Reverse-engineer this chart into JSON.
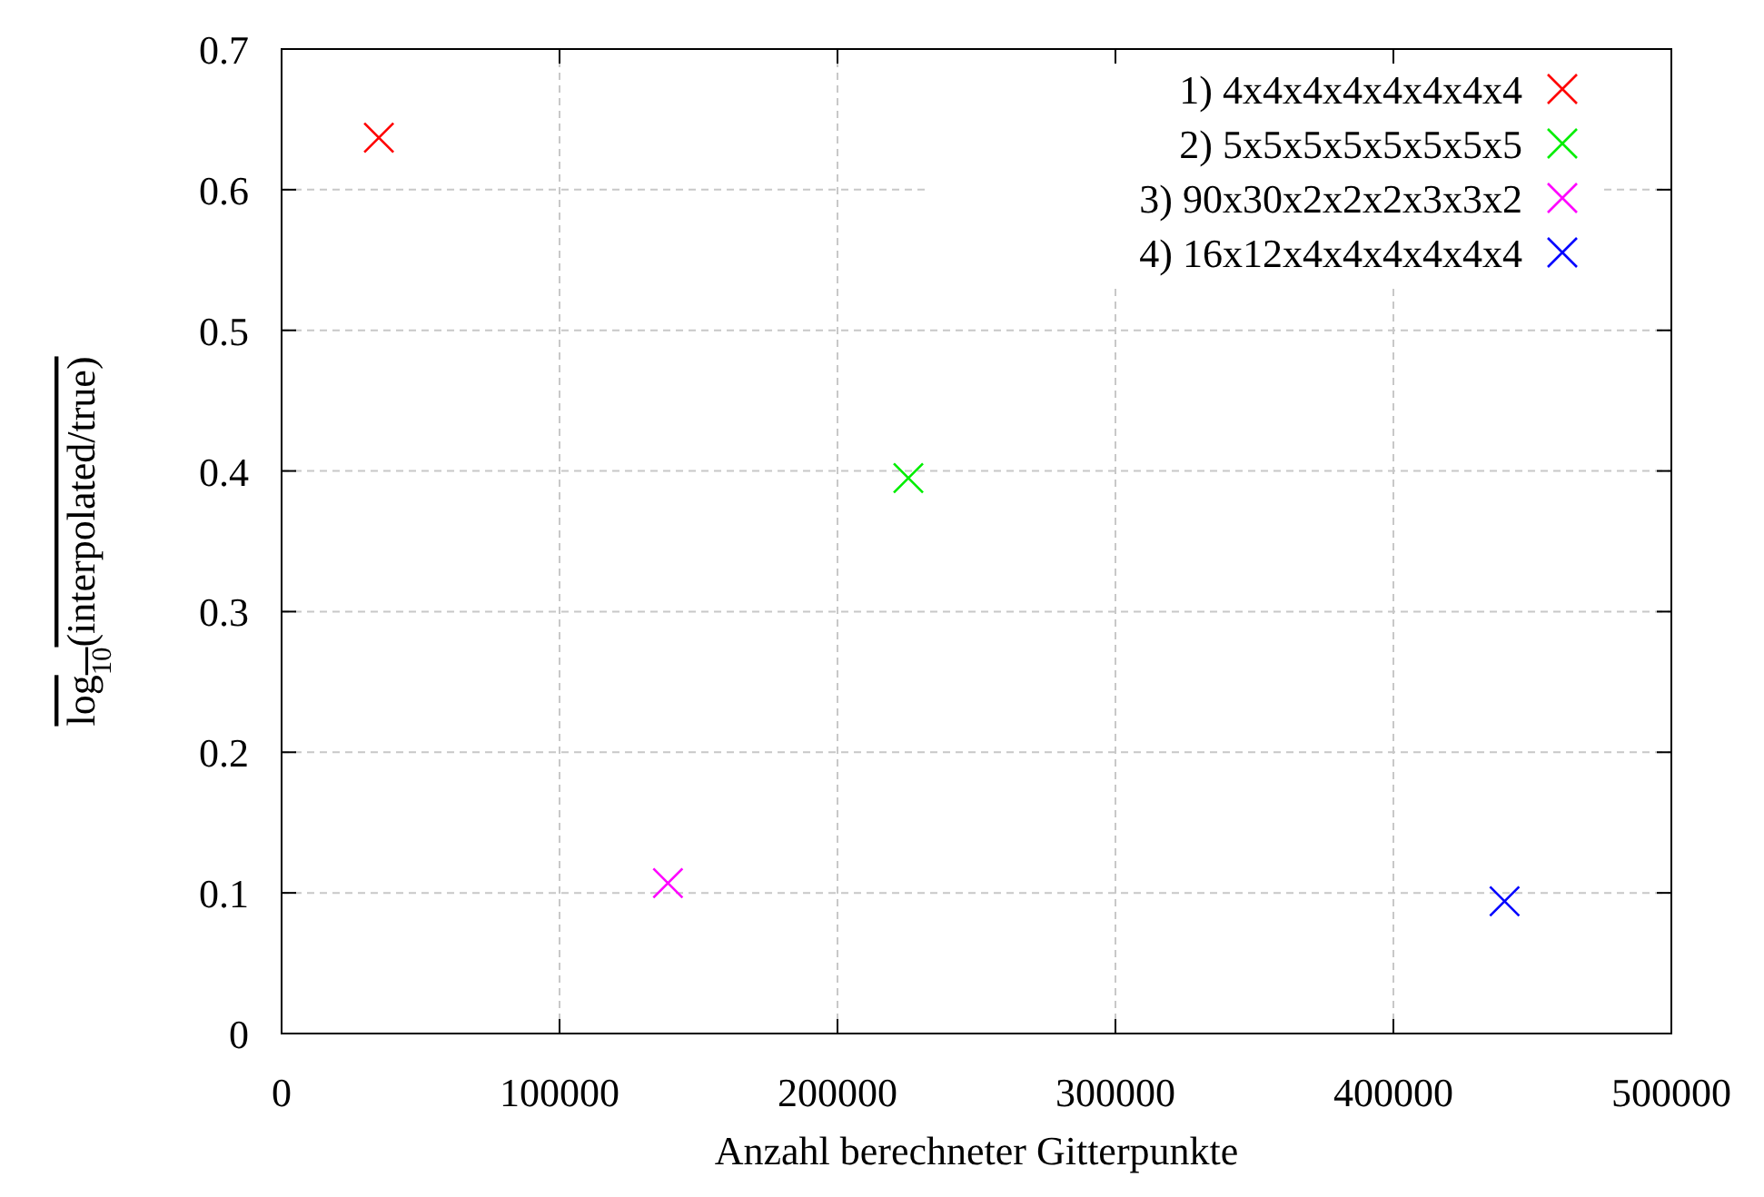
{
  "chart_data": {
    "type": "scatter",
    "xlabel": "Anzahl berechneter Gitterpunkte",
    "ylabel": "log$_{10}$(interpolated/true)",
    "xlim": [
      0,
      500000
    ],
    "xticks": [
      0,
      100000,
      200000,
      300000,
      400000,
      500000
    ],
    "ylim": [
      0,
      0.7
    ],
    "yticks": [
      0,
      0.1,
      0.2,
      0.3,
      0.4,
      0.5,
      0.6,
      0.7
    ],
    "grid": true,
    "legend": "top right",
    "marker": "cross",
    "series": [
      {
        "name": "1) 4x4x4x4x4x4x4x4",
        "color": "#ff0000",
        "x": [
          35000
        ],
        "values": [
          0.637
        ]
      },
      {
        "name": "2) 5x5x5x5x5x5x5x5",
        "color": "#00ee00",
        "x": [
          225500
        ],
        "values": [
          0.395
        ]
      },
      {
        "name": "3) 90x30x2x2x2x3x3x2",
        "color": "#ff00ff",
        "x": [
          139000
        ],
        "values": [
          0.107
        ]
      },
      {
        "name": "4) 16x12x4x4x4x4x4x4",
        "color": "#0000ff",
        "x": [
          440000
        ],
        "values": [
          0.094
        ]
      }
    ]
  }
}
